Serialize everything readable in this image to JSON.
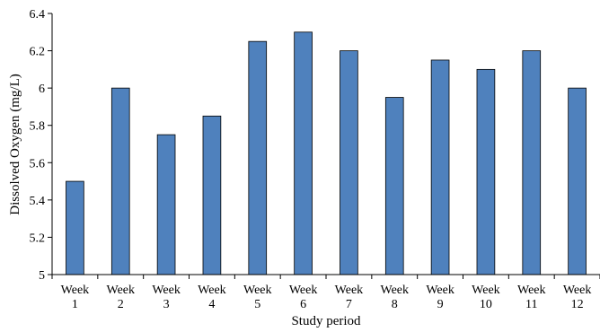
{
  "chart_data": {
    "type": "bar",
    "title": "",
    "xlabel": "Study period",
    "ylabel": "Dissolved Oxygen (mg/L)",
    "categories": [
      [
        "Week",
        "1"
      ],
      [
        "Week",
        "2"
      ],
      [
        "Week",
        "3"
      ],
      [
        "Week",
        "4"
      ],
      [
        "Week",
        "5"
      ],
      [
        "Week",
        "6"
      ],
      [
        "Week",
        "7"
      ],
      [
        "Week",
        "8"
      ],
      [
        "Week",
        "9"
      ],
      [
        "Week",
        "10"
      ],
      [
        "Week",
        "11"
      ],
      [
        "Week",
        "12"
      ]
    ],
    "values": [
      5.5,
      6.0,
      5.75,
      5.85,
      6.25,
      6.3,
      6.2,
      5.95,
      6.15,
      6.1,
      6.2,
      6.0
    ],
    "ylim": [
      5,
      6.4
    ],
    "yticks": [
      "5",
      "5.2",
      "5.4",
      "5.6",
      "5.8",
      "6",
      "6.2",
      "6.4"
    ],
    "ytick_values": [
      5,
      5.2,
      5.4,
      5.6,
      5.8,
      6.0,
      6.2,
      6.4
    ],
    "grid": false,
    "legend": "none",
    "bar_color": "#4f81bd",
    "bar_edge_color": "#000000"
  }
}
